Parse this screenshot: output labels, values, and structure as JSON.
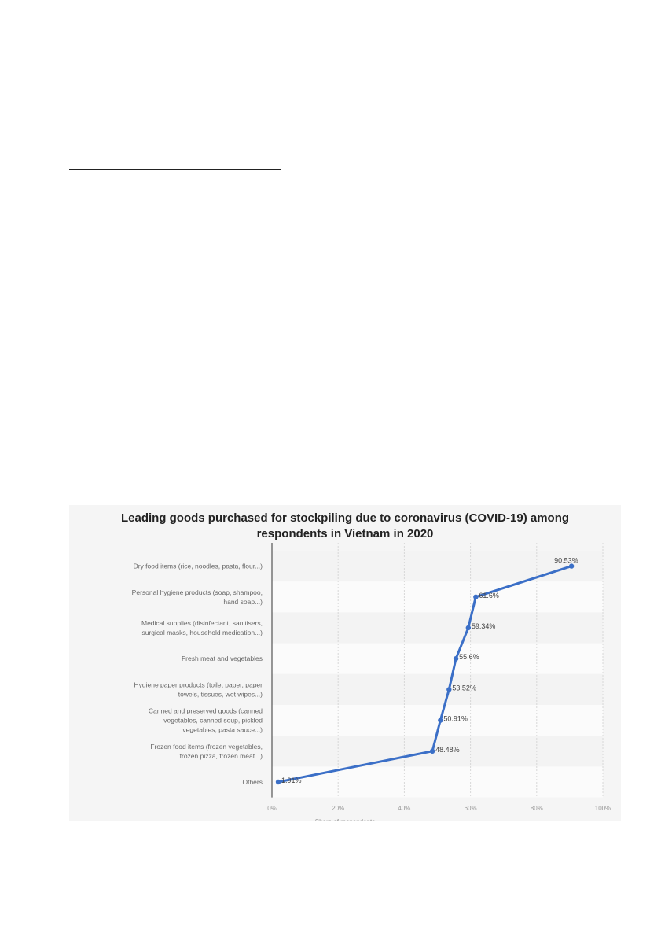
{
  "chart_data": {
    "type": "line",
    "title": "Leading goods purchased for stockpiling due to coronavirus (COVID-19) among respondents in Vietnam in 2020",
    "title_lines": [
      "Leading goods purchased for stockpiling due to coronavirus (COVID-19) among",
      "respondents in Vietnam in 2020"
    ],
    "xlabel": "Share of respondents",
    "ylabel": "",
    "xlim": [
      0,
      100
    ],
    "x_ticks": [
      "0%",
      "20%",
      "40%",
      "60%",
      "80%",
      "100%"
    ],
    "grid": true,
    "line_color": "#3b6fc7",
    "categories": [
      [
        "Dry food items (rice, noodles, pasta, flour...)"
      ],
      [
        "Personal hygiene products (soap, shampoo,",
        "hand soap...)"
      ],
      [
        "Medical supplies (disinfectant, sanitisers,",
        "surgical masks, household medication...)"
      ],
      [
        "Fresh meat and vegetables"
      ],
      [
        "Hygiene paper products (toilet paper, paper",
        "towels, tissues, wet wipes...)"
      ],
      [
        "Canned and preserved goods (canned",
        "vegetables, canned soup, pickled",
        "vegetables, pasta sauce...)"
      ],
      [
        "Frozen food items (frozen vegetables,",
        "frozen pizza, frozen meat...)"
      ],
      [
        "Others"
      ]
    ],
    "values": [
      90.53,
      61.6,
      59.34,
      55.6,
      53.52,
      50.91,
      48.48,
      1.91
    ],
    "data_labels": [
      "90.53%",
      "61.6%",
      "59.34%",
      "55.6%",
      "53.52%",
      "50.91%",
      "48.48%",
      "1.91%"
    ]
  }
}
